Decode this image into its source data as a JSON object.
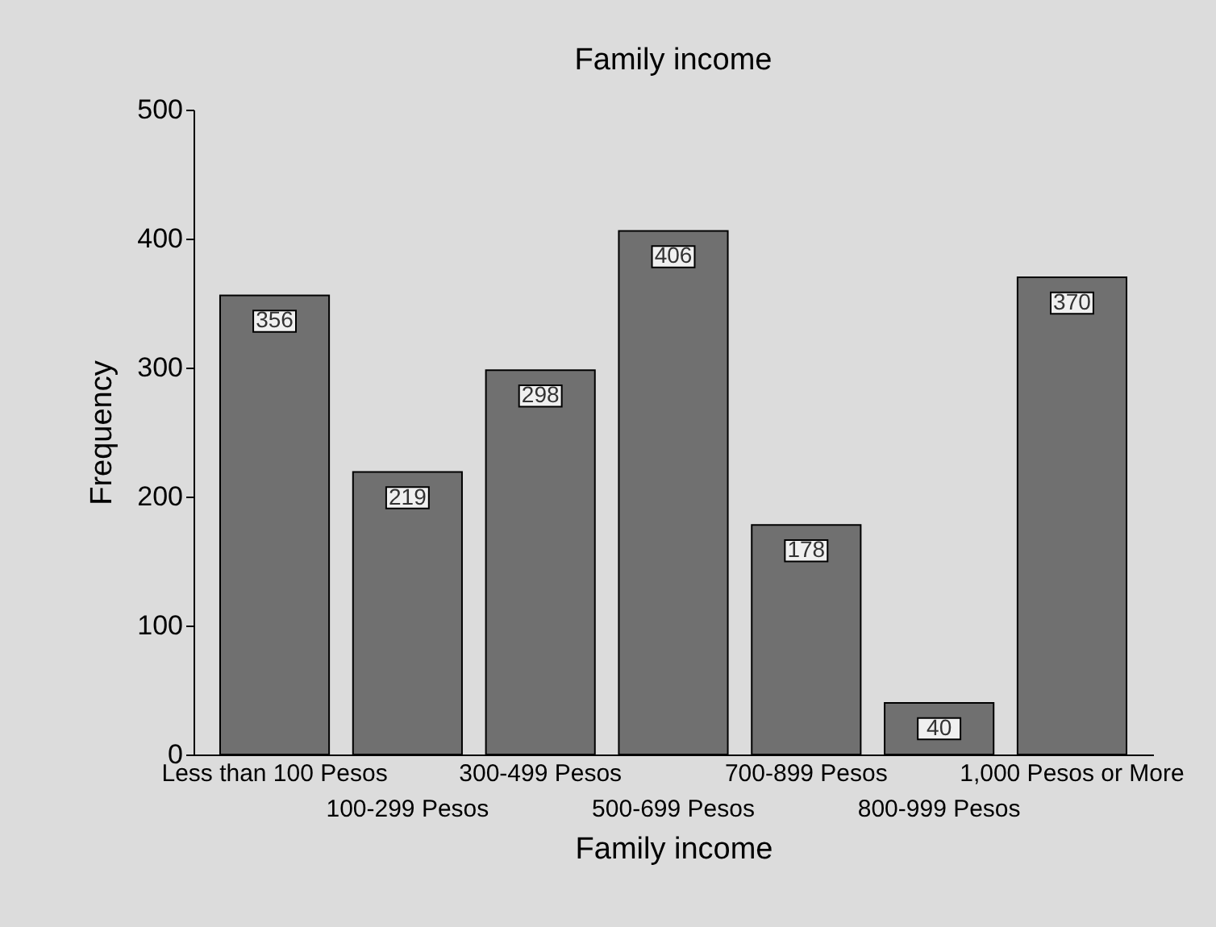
{
  "chart_data": {
    "type": "bar",
    "title": "Family income",
    "xlabel": "Family income",
    "ylabel": "Frequency",
    "categories": [
      "Less than 100 Pesos",
      "100-299 Pesos",
      "300-499 Pesos",
      "500-699 Pesos",
      "700-899 Pesos",
      "800-999 Pesos",
      "1,000 Pesos or More"
    ],
    "values": [
      356,
      219,
      298,
      406,
      178,
      40,
      370
    ],
    "color": "#707070",
    "ylim": [
      0,
      500
    ],
    "yticks": [
      0,
      100,
      200,
      300,
      400,
      500
    ],
    "data_labels": true
  }
}
